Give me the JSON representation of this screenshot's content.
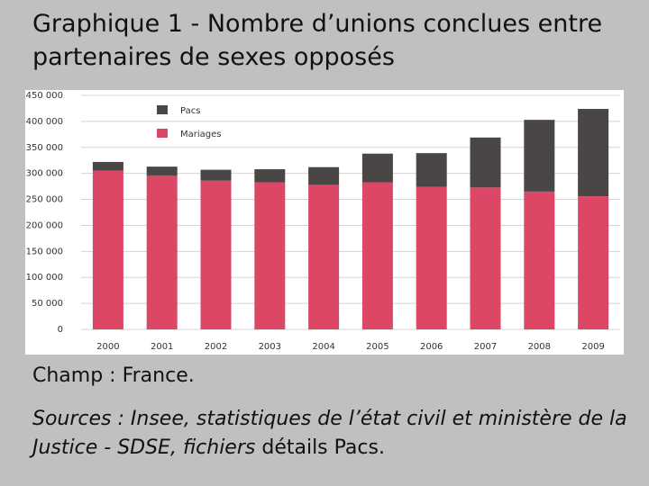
{
  "title": "Graphique 1 - Nombre d’unions conclues entre partenaires de sexes opposés",
  "footnote": {
    "champ": "Champ : France.",
    "sources_italic": "Sources : Insee, statistiques de l’état civil et ministère de la Justice - SDSE, fichiers",
    "sources_normal": " détails Pacs."
  },
  "colors": {
    "mariages": "#dc4766",
    "pacs": "#4a4646",
    "grid": "#d4d4d4"
  },
  "chart_data": {
    "type": "bar",
    "stacked": true,
    "categories": [
      "2000",
      "2001",
      "2002",
      "2003",
      "2004",
      "2005",
      "2006",
      "2007",
      "2008",
      "2009"
    ],
    "series": [
      {
        "name": "Mariages",
        "values": [
          305000,
          296000,
          286000,
          283000,
          278000,
          283000,
          274000,
          273000,
          265000,
          256000
        ]
      },
      {
        "name": "Pacs",
        "values": [
          17000,
          17000,
          21000,
          25000,
          34000,
          55000,
          65000,
          96000,
          138000,
          168000
        ]
      }
    ],
    "yticks": [
      "0",
      "50 000",
      "100 000",
      "150 000",
      "200 000",
      "250 000",
      "300 000",
      "350 000",
      "400 000",
      "450 000"
    ],
    "ylim": [
      0,
      450000
    ],
    "grid": true,
    "legend_position": "top-left"
  }
}
